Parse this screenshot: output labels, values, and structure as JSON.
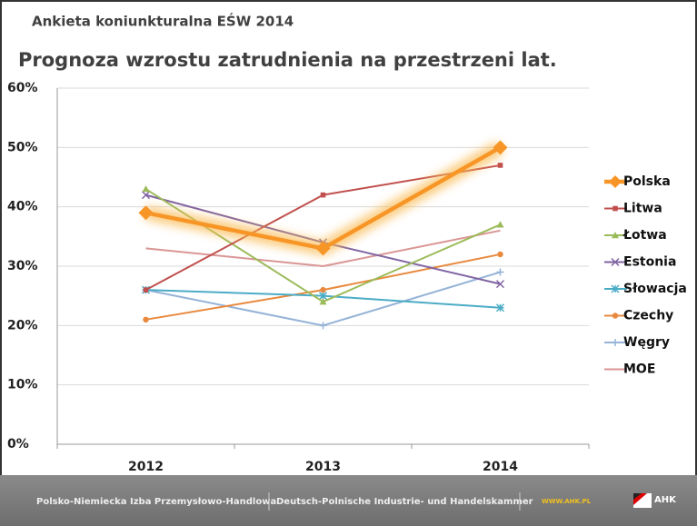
{
  "chart_data": {
    "type": "line",
    "title": "Ankieta koniunkturalna EŚW 2014",
    "subtitle": "Prognoza wzrostu zatrudnienia na przestrzeni lat.",
    "categories": [
      "2012",
      "2013",
      "2014"
    ],
    "series": [
      {
        "name": "Polska",
        "color": "#f79626",
        "marker": "diamond",
        "values": [
          39,
          33,
          50
        ]
      },
      {
        "name": "Litwa",
        "color": "#c0504d",
        "marker": "square",
        "values": [
          26,
          42,
          47
        ]
      },
      {
        "name": "Łotwa",
        "color": "#9bbb59",
        "marker": "triangle",
        "values": [
          43,
          24,
          37
        ]
      },
      {
        "name": "Estonia",
        "color": "#8064a2",
        "marker": "x",
        "values": [
          42,
          34,
          27
        ]
      },
      {
        "name": "Słowacja",
        "color": "#4bacc6",
        "marker": "asterisk",
        "values": [
          26,
          25,
          23
        ]
      },
      {
        "name": "Czechy",
        "color": "#e8893e",
        "marker": "circle",
        "values": [
          21,
          26,
          32
        ]
      },
      {
        "name": "Węgry",
        "color": "#95b3d7",
        "marker": "plus",
        "values": [
          26,
          20,
          29
        ]
      },
      {
        "name": "MOE",
        "color": "#d99694",
        "marker": "none",
        "values": [
          33,
          30,
          36
        ]
      }
    ],
    "ylim": [
      0,
      60
    ],
    "yticks": [
      {
        "value": 0,
        "label": "0%"
      },
      {
        "value": 10,
        "label": "10%"
      },
      {
        "value": 20,
        "label": "20%"
      },
      {
        "value": 30,
        "label": "30%"
      },
      {
        "value": 40,
        "label": "40%"
      },
      {
        "value": 50,
        "label": "50%"
      },
      {
        "value": 60,
        "label": "60%"
      }
    ],
    "grid": true,
    "legend": "right"
  },
  "footer": {
    "left": "Polsko-Niemiecka Izba Przemysłowo-Handlowa",
    "middle": "Deutsch-Polnische Industrie- und Handelskammer",
    "url": "WWW.AHK.PL",
    "logo": "AHK"
  }
}
